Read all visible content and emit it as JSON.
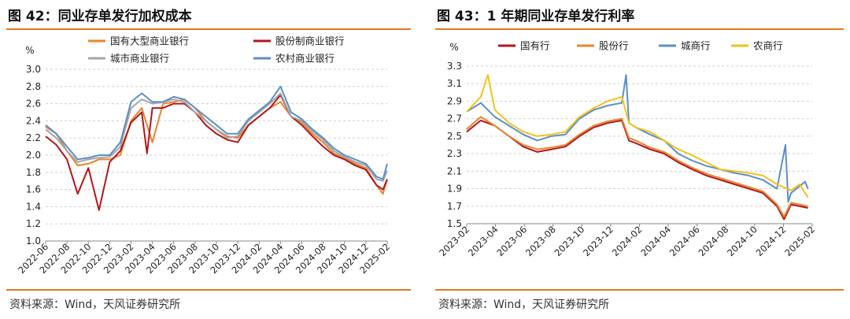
{
  "left": {
    "title": "图 42：同业存单发行加权成本",
    "source": "资料来源：Wind，天风证券研究所",
    "chart_data": {
      "type": "line",
      "title": "图 42：同业存单发行加权成本",
      "ylabel": "%",
      "ylim": [
        1.0,
        3.0
      ],
      "yticks": [
        "3.0",
        "2.8",
        "2.6",
        "2.4",
        "2.2",
        "2.0",
        "1.8",
        "1.6",
        "1.4",
        "1.2",
        "1.0"
      ],
      "xlim": [
        0,
        32
      ],
      "xtick_labels": [
        "2022-06",
        "2022-08",
        "2022-10",
        "2022-12",
        "2023-02",
        "2023-04",
        "2023-06",
        "2023-08",
        "2023-10",
        "2023-12",
        "2024-02",
        "2024-04",
        "2024-06",
        "2024-08",
        "2024-10",
        "2024-12",
        "2025-02"
      ],
      "grid": true,
      "legend_position": "top",
      "series": [
        {
          "name": "国有大型商业银行",
          "color": "#E8852F",
          "points": [
            [
              0,
              2.33
            ],
            [
              1,
              2.25
            ],
            [
              2,
              2.05
            ],
            [
              3,
              1.88
            ],
            [
              4,
              1.9
            ],
            [
              5,
              1.95
            ],
            [
              6,
              1.95
            ],
            [
              7,
              2.0
            ],
            [
              8,
              2.4
            ],
            [
              9,
              2.55
            ],
            [
              10,
              2.15
            ],
            [
              11,
              2.6
            ],
            [
              12,
              2.62
            ],
            [
              13,
              2.65
            ],
            [
              14,
              2.55
            ],
            [
              15,
              2.4
            ],
            [
              16,
              2.3
            ],
            [
              17,
              2.22
            ],
            [
              18,
              2.2
            ],
            [
              19,
              2.35
            ],
            [
              20,
              2.45
            ],
            [
              21,
              2.55
            ],
            [
              22,
              2.62
            ],
            [
              23,
              2.45
            ],
            [
              24,
              2.38
            ],
            [
              25,
              2.25
            ],
            [
              26,
              2.15
            ],
            [
              27,
              2.02
            ],
            [
              28,
              1.97
            ],
            [
              29,
              1.9
            ],
            [
              30,
              1.85
            ],
            [
              31,
              1.65
            ],
            [
              31.6,
              1.55
            ],
            [
              32,
              1.72
            ]
          ]
        },
        {
          "name": "股份制商业银行",
          "color": "#B3161C",
          "points": [
            [
              0,
              2.22
            ],
            [
              1,
              2.12
            ],
            [
              2,
              1.95
            ],
            [
              3,
              1.55
            ],
            [
              4,
              1.85
            ],
            [
              5,
              1.36
            ],
            [
              6,
              1.92
            ],
            [
              7,
              2.05
            ],
            [
              8,
              2.38
            ],
            [
              9,
              2.5
            ],
            [
              9.5,
              2.02
            ],
            [
              10,
              2.55
            ],
            [
              11,
              2.55
            ],
            [
              12,
              2.6
            ],
            [
              13,
              2.6
            ],
            [
              14,
              2.5
            ],
            [
              15,
              2.35
            ],
            [
              16,
              2.25
            ],
            [
              17,
              2.18
            ],
            [
              18,
              2.15
            ],
            [
              19,
              2.35
            ],
            [
              20,
              2.45
            ],
            [
              21,
              2.55
            ],
            [
              22,
              2.7
            ],
            [
              23,
              2.45
            ],
            [
              24,
              2.35
            ],
            [
              25,
              2.22
            ],
            [
              26,
              2.1
            ],
            [
              27,
              2.0
            ],
            [
              28,
              1.95
            ],
            [
              29,
              1.88
            ],
            [
              30,
              1.83
            ],
            [
              31,
              1.65
            ],
            [
              31.6,
              1.6
            ],
            [
              32,
              1.72
            ]
          ]
        },
        {
          "name": "城市商业银行",
          "color": "#A6A6A6",
          "points": [
            [
              0,
              2.3
            ],
            [
              1,
              2.2
            ],
            [
              2,
              2.05
            ],
            [
              3,
              1.92
            ],
            [
              4,
              1.95
            ],
            [
              5,
              1.97
            ],
            [
              6,
              1.98
            ],
            [
              7,
              2.1
            ],
            [
              8,
              2.55
            ],
            [
              9,
              2.65
            ],
            [
              10,
              2.6
            ],
            [
              11,
              2.62
            ],
            [
              12,
              2.65
            ],
            [
              13,
              2.62
            ],
            [
              14,
              2.5
            ],
            [
              15,
              2.4
            ],
            [
              16,
              2.3
            ],
            [
              17,
              2.2
            ],
            [
              18,
              2.22
            ],
            [
              19,
              2.4
            ],
            [
              20,
              2.5
            ],
            [
              21,
              2.6
            ],
            [
              22,
              2.72
            ],
            [
              23,
              2.45
            ],
            [
              24,
              2.4
            ],
            [
              25,
              2.28
            ],
            [
              26,
              2.18
            ],
            [
              27,
              2.05
            ],
            [
              28,
              1.98
            ],
            [
              29,
              1.92
            ],
            [
              30,
              1.88
            ],
            [
              31,
              1.72
            ],
            [
              31.6,
              1.7
            ],
            [
              32,
              1.82
            ]
          ]
        },
        {
          "name": "农村商业银行",
          "color": "#5B8FC7",
          "points": [
            [
              0,
              2.35
            ],
            [
              1,
              2.25
            ],
            [
              2,
              2.1
            ],
            [
              3,
              1.95
            ],
            [
              4,
              1.97
            ],
            [
              5,
              2.0
            ],
            [
              6,
              2.0
            ],
            [
              7,
              2.15
            ],
            [
              8,
              2.62
            ],
            [
              9,
              2.72
            ],
            [
              10,
              2.62
            ],
            [
              11,
              2.62
            ],
            [
              12,
              2.68
            ],
            [
              13,
              2.65
            ],
            [
              14,
              2.55
            ],
            [
              15,
              2.45
            ],
            [
              16,
              2.35
            ],
            [
              17,
              2.25
            ],
            [
              18,
              2.25
            ],
            [
              19,
              2.42
            ],
            [
              20,
              2.52
            ],
            [
              21,
              2.62
            ],
            [
              22,
              2.8
            ],
            [
              23,
              2.5
            ],
            [
              24,
              2.42
            ],
            [
              25,
              2.3
            ],
            [
              26,
              2.2
            ],
            [
              27,
              2.08
            ],
            [
              28,
              2.0
            ],
            [
              29,
              1.95
            ],
            [
              30,
              1.9
            ],
            [
              31,
              1.75
            ],
            [
              31.6,
              1.72
            ],
            [
              32,
              1.9
            ]
          ]
        }
      ]
    }
  },
  "right": {
    "title": "图 43：1 年期同业存单发行利率",
    "source": "资料来源：Wind，天风证券研究所",
    "chart_data": {
      "type": "line",
      "title": "图 43：1 年期同业存单发行利率",
      "ylabel": "%",
      "ylim": [
        1.5,
        3.3
      ],
      "yticks": [
        "3.3",
        "3.1",
        "2.9",
        "2.7",
        "2.5",
        "2.3",
        "2.1",
        "1.9",
        "1.7",
        "1.5"
      ],
      "xlim": [
        0,
        24.5
      ],
      "xtick_labels": [
        "2023-02",
        "2023-04",
        "2023-06",
        "2023-08",
        "2023-10",
        "2023-12",
        "2024-02",
        "2024-04",
        "2024-06",
        "2024-08",
        "2024-10",
        "2024-12",
        "2025-02"
      ],
      "grid": true,
      "legend_position": "top",
      "series": [
        {
          "name": "国有行",
          "color": "#B3161C",
          "points": [
            [
              0,
              2.55
            ],
            [
              1,
              2.68
            ],
            [
              2,
              2.62
            ],
            [
              3,
              2.5
            ],
            [
              4,
              2.38
            ],
            [
              5,
              2.32
            ],
            [
              6,
              2.35
            ],
            [
              7,
              2.38
            ],
            [
              8,
              2.5
            ],
            [
              9,
              2.6
            ],
            [
              10,
              2.65
            ],
            [
              11,
              2.68
            ],
            [
              11.5,
              2.45
            ],
            [
              12,
              2.42
            ],
            [
              13,
              2.35
            ],
            [
              14,
              2.3
            ],
            [
              15,
              2.2
            ],
            [
              16,
              2.12
            ],
            [
              17,
              2.05
            ],
            [
              18,
              2.0
            ],
            [
              19,
              1.95
            ],
            [
              20,
              1.9
            ],
            [
              21,
              1.85
            ],
            [
              22,
              1.7
            ],
            [
              22.5,
              1.55
            ],
            [
              23,
              1.72
            ],
            [
              24.2,
              1.68
            ]
          ]
        },
        {
          "name": "股份行",
          "color": "#E8852F",
          "points": [
            [
              0,
              2.58
            ],
            [
              1,
              2.72
            ],
            [
              2,
              2.62
            ],
            [
              3,
              2.5
            ],
            [
              4,
              2.4
            ],
            [
              5,
              2.35
            ],
            [
              6,
              2.37
            ],
            [
              7,
              2.4
            ],
            [
              8,
              2.52
            ],
            [
              9,
              2.62
            ],
            [
              10,
              2.67
            ],
            [
              11,
              2.7
            ],
            [
              11.5,
              2.48
            ],
            [
              12,
              2.45
            ],
            [
              13,
              2.37
            ],
            [
              14,
              2.32
            ],
            [
              15,
              2.22
            ],
            [
              16,
              2.14
            ],
            [
              17,
              2.07
            ],
            [
              18,
              2.02
            ],
            [
              19,
              1.97
            ],
            [
              20,
              1.92
            ],
            [
              21,
              1.87
            ],
            [
              22,
              1.72
            ],
            [
              22.5,
              1.58
            ],
            [
              23,
              1.74
            ],
            [
              24.2,
              1.7
            ]
          ]
        },
        {
          "name": "城商行",
          "color": "#5B8FC7",
          "points": [
            [
              0,
              2.78
            ],
            [
              1,
              2.88
            ],
            [
              2,
              2.72
            ],
            [
              3,
              2.62
            ],
            [
              4,
              2.52
            ],
            [
              5,
              2.45
            ],
            [
              6,
              2.5
            ],
            [
              7,
              2.52
            ],
            [
              8,
              2.7
            ],
            [
              9,
              2.8
            ],
            [
              10,
              2.85
            ],
            [
              11,
              2.88
            ],
            [
              11.3,
              3.2
            ],
            [
              11.5,
              2.65
            ],
            [
              12,
              2.6
            ],
            [
              13,
              2.52
            ],
            [
              14,
              2.45
            ],
            [
              15,
              2.3
            ],
            [
              16,
              2.22
            ],
            [
              17,
              2.16
            ],
            [
              18,
              2.12
            ],
            [
              19,
              2.08
            ],
            [
              20,
              2.05
            ],
            [
              21,
              2.0
            ],
            [
              22,
              1.9
            ],
            [
              22.6,
              2.4
            ],
            [
              22.8,
              1.75
            ],
            [
              23,
              1.85
            ],
            [
              24,
              1.98
            ],
            [
              24.2,
              1.9
            ]
          ]
        },
        {
          "name": "农商行",
          "color": "#F2C318",
          "points": [
            [
              0,
              2.78
            ],
            [
              1,
              2.95
            ],
            [
              1.5,
              3.2
            ],
            [
              2,
              2.8
            ],
            [
              3,
              2.65
            ],
            [
              4,
              2.55
            ],
            [
              5,
              2.5
            ],
            [
              6,
              2.52
            ],
            [
              7,
              2.55
            ],
            [
              8,
              2.72
            ],
            [
              9,
              2.82
            ],
            [
              10,
              2.9
            ],
            [
              11,
              2.95
            ],
            [
              11.5,
              2.65
            ],
            [
              12,
              2.6
            ],
            [
              13,
              2.55
            ],
            [
              14,
              2.45
            ],
            [
              15,
              2.35
            ],
            [
              16,
              2.28
            ],
            [
              17,
              2.2
            ],
            [
              18,
              2.12
            ],
            [
              19,
              2.1
            ],
            [
              20,
              2.08
            ],
            [
              21,
              2.05
            ],
            [
              22,
              1.95
            ],
            [
              23,
              1.88
            ],
            [
              23.6,
              1.95
            ],
            [
              24.2,
              1.8
            ]
          ]
        }
      ]
    }
  }
}
